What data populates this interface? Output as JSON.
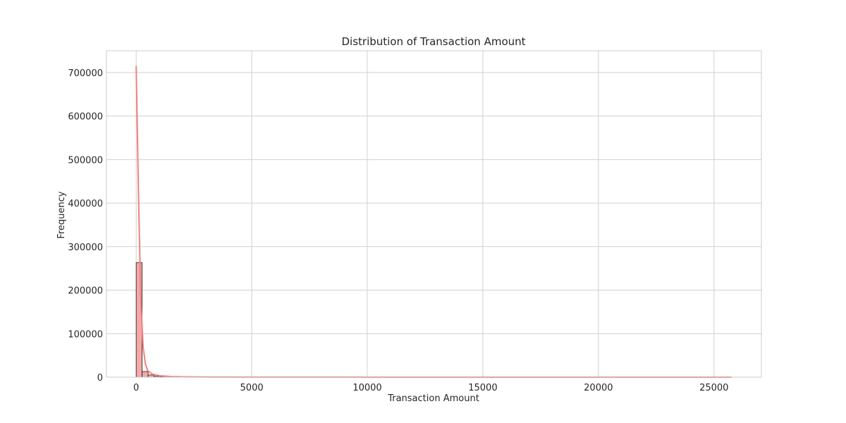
{
  "chart_data": {
    "type": "bar",
    "title": "Distribution of Transaction Amount",
    "xlabel": "Transaction Amount",
    "ylabel": "Frequency",
    "xlim": [
      -1286,
      27051
    ],
    "ylim": [
      0,
      750000
    ],
    "x_ticks": [
      0,
      5000,
      10000,
      15000,
      20000,
      25000
    ],
    "y_ticks": [
      0,
      100000,
      200000,
      300000,
      400000,
      500000,
      600000,
      700000
    ],
    "grid": true,
    "bin_width": 257.6,
    "bins": [
      {
        "x0": 0,
        "x1": 257.6,
        "count": 263000
      },
      {
        "x0": 257.6,
        "x1": 515.2,
        "count": 13000
      },
      {
        "x0": 515.2,
        "x1": 772.8,
        "count": 5000
      },
      {
        "x0": 772.8,
        "x1": 1030.4,
        "count": 2000
      },
      {
        "x0": 1030.4,
        "x1": 1288,
        "count": 1000
      },
      {
        "x0": 1288,
        "x1": 1545.6,
        "count": 600
      },
      {
        "x0": 1545.6,
        "x1": 1803.2,
        "count": 350
      },
      {
        "x0": 1803.2,
        "x1": 2060.8,
        "count": 200
      }
    ],
    "kde": {
      "x": [
        0,
        100,
        200,
        300,
        400,
        500,
        700,
        1000,
        1500,
        2000,
        3000,
        5000,
        10000,
        15000,
        20000,
        25760
      ],
      "y": [
        715000,
        420000,
        180000,
        70000,
        30000,
        15000,
        7000,
        3500,
        1500,
        800,
        400,
        200,
        100,
        80,
        60,
        0
      ]
    },
    "colors": {
      "bar_fill": "#f4a8a8",
      "bar_stroke": "#1a1a1a",
      "kde_line": "#f08080",
      "grid": "#d0d0d0",
      "frame": "#cccccc"
    }
  }
}
